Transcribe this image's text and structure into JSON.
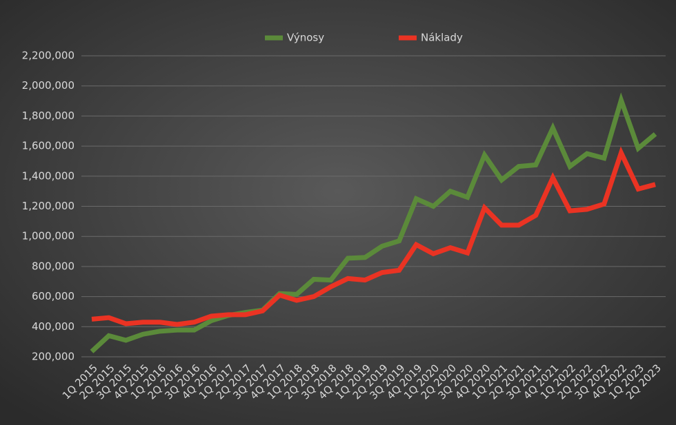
{
  "chart_data": {
    "type": "line",
    "categories": [
      "1Q 2015",
      "2Q 2015",
      "3Q 2015",
      "4Q 2015",
      "1Q 2016",
      "2Q 2016",
      "3Q 2016",
      "4Q 2016",
      "1Q 2017",
      "2Q 2017",
      "3Q 2017",
      "4Q 2017",
      "1Q 2018",
      "2Q 2018",
      "3Q 2018",
      "4Q 2018",
      "1Q 2019",
      "2Q 2019",
      "3Q 2019",
      "4Q 2019",
      "1Q 2020",
      "2Q 2020",
      "3Q 2020",
      "4Q 2020",
      "1Q 2021",
      "2Q 2021",
      "3Q 2021",
      "4Q 2021",
      "1Q 2022",
      "2Q 2022",
      "3Q 2022",
      "4Q 2022",
      "1Q 2023",
      "2Q 2023"
    ],
    "series": [
      {
        "name": "Výnosy",
        "color": "#5b8a3a",
        "values": [
          235000,
          340000,
          310000,
          350000,
          370000,
          378000,
          378000,
          440000,
          475000,
          495000,
          510000,
          620000,
          615000,
          715000,
          710000,
          855000,
          860000,
          935000,
          970000,
          1250000,
          1200000,
          1300000,
          1260000,
          1540000,
          1375000,
          1465000,
          1475000,
          1720000,
          1465000,
          1550000,
          1520000,
          1905000,
          1585000,
          1680000
        ]
      },
      {
        "name": "Náklady",
        "color": "#ea3323",
        "values": [
          450000,
          460000,
          420000,
          430000,
          430000,
          415000,
          430000,
          470000,
          480000,
          480000,
          505000,
          610000,
          575000,
          600000,
          665000,
          720000,
          710000,
          760000,
          775000,
          945000,
          885000,
          925000,
          890000,
          1190000,
          1075000,
          1075000,
          1140000,
          1390000,
          1170000,
          1180000,
          1215000,
          1555000,
          1315000,
          1345000
        ]
      }
    ],
    "ylim": [
      200000,
      2200000
    ],
    "yticks": [
      {
        "value": 200000,
        "label": "200,000"
      },
      {
        "value": 400000,
        "label": "400,000"
      },
      {
        "value": 600000,
        "label": "600,000"
      },
      {
        "value": 800000,
        "label": "800,000"
      },
      {
        "value": 1000000,
        "label": "1,000,000"
      },
      {
        "value": 1200000,
        "label": "1,200,000"
      },
      {
        "value": 1400000,
        "label": "1,400,000"
      },
      {
        "value": 1600000,
        "label": "1,600,000"
      },
      {
        "value": 1800000,
        "label": "1,800,000"
      },
      {
        "value": 2000000,
        "label": "2,000,000"
      },
      {
        "value": 2200000,
        "label": "2,200,000"
      }
    ],
    "grid": true,
    "legend": "top"
  }
}
